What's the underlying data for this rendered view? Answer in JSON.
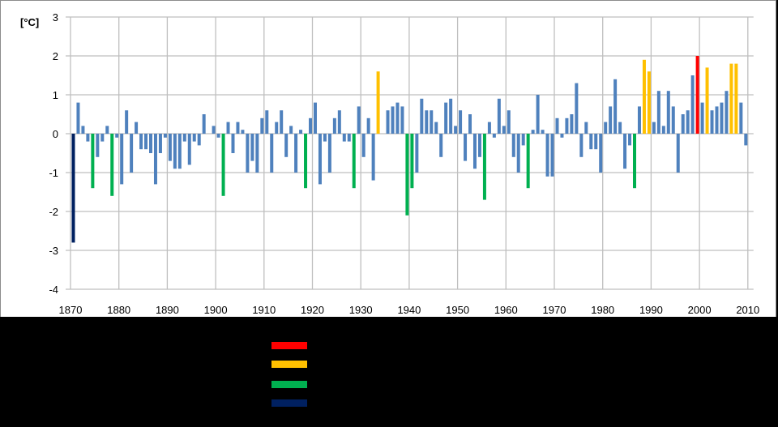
{
  "chart_data": {
    "type": "bar",
    "title": "",
    "xlabel": "",
    "ylabel": "[°C]",
    "ylim": [
      -4,
      3
    ],
    "xlim": [
      1870,
      2010
    ],
    "grid": true,
    "y_ticks": [
      "3",
      "2",
      "1",
      "0",
      "-1",
      "-2",
      "-3",
      "-4"
    ],
    "x_ticks": [
      "1870",
      "1880",
      "1890",
      "1900",
      "1910",
      "1920",
      "1930",
      "1940",
      "1950",
      "1960",
      "1970",
      "1980",
      "1990",
      "2000",
      "2010"
    ],
    "colors": {
      "normal": "#4f81bd",
      "warmest": "#ff0000",
      "very_warm": "#ffc000",
      "very_cold": "#00b050",
      "coldest": "#002060"
    },
    "legend": [
      {
        "color": "#ff0000",
        "label": ""
      },
      {
        "color": "#ffc000",
        "label": ""
      },
      {
        "color": "#00b050",
        "label": ""
      },
      {
        "color": "#002060",
        "label": ""
      }
    ],
    "x": [
      1871,
      1872,
      1873,
      1874,
      1875,
      1876,
      1877,
      1878,
      1879,
      1880,
      1881,
      1882,
      1883,
      1884,
      1885,
      1886,
      1887,
      1888,
      1889,
      1890,
      1891,
      1892,
      1893,
      1894,
      1895,
      1896,
      1897,
      1898,
      1899,
      1900,
      1901,
      1902,
      1903,
      1904,
      1905,
      1906,
      1907,
      1908,
      1909,
      1910,
      1911,
      1912,
      1913,
      1914,
      1915,
      1916,
      1917,
      1918,
      1919,
      1920,
      1921,
      1922,
      1923,
      1924,
      1925,
      1926,
      1927,
      1928,
      1929,
      1930,
      1931,
      1932,
      1933,
      1934,
      1935,
      1936,
      1937,
      1938,
      1939,
      1940,
      1941,
      1942,
      1943,
      1944,
      1945,
      1946,
      1947,
      1948,
      1949,
      1950,
      1951,
      1952,
      1953,
      1954,
      1955,
      1956,
      1957,
      1958,
      1959,
      1960,
      1961,
      1962,
      1963,
      1964,
      1965,
      1966,
      1967,
      1968,
      1969,
      1970,
      1971,
      1972,
      1973,
      1974,
      1975,
      1976,
      1977,
      1978,
      1979,
      1980,
      1981,
      1982,
      1983,
      1984,
      1985,
      1986,
      1987,
      1988,
      1989,
      1990,
      1991,
      1992,
      1993,
      1994,
      1995,
      1996,
      1997,
      1998,
      1999,
      2000,
      2001,
      2002,
      2003,
      2004,
      2005,
      2006,
      2007,
      2008,
      2009,
      2010
    ],
    "values": [
      -2.8,
      0.8,
      0.2,
      -0.2,
      -1.4,
      -0.6,
      -0.2,
      0.2,
      -1.6,
      -0.1,
      -1.3,
      0.6,
      -1.0,
      0.3,
      -0.4,
      -0.4,
      -0.5,
      -1.3,
      -0.5,
      -0.1,
      -0.7,
      -0.9,
      -0.9,
      -0.2,
      -0.8,
      -0.2,
      -0.3,
      0.5,
      0.0,
      0.2,
      -0.1,
      -1.6,
      0.3,
      -0.5,
      0.3,
      0.1,
      -1.0,
      -0.7,
      -1.0,
      0.4,
      0.6,
      -1.0,
      0.3,
      0.6,
      -0.6,
      0.2,
      -1.0,
      0.1,
      -1.4,
      0.4,
      0.8,
      -1.3,
      -0.2,
      -1.0,
      0.4,
      0.6,
      -0.2,
      -0.2,
      -1.4,
      0.7,
      -0.6,
      0.4,
      -1.2,
      1.6,
      0.0,
      0.6,
      0.7,
      0.8,
      0.7,
      -2.1,
      -1.4,
      -1.0,
      0.9,
      0.6,
      0.6,
      0.3,
      -0.6,
      0.8,
      0.9,
      0.2,
      0.6,
      -0.7,
      0.5,
      -0.9,
      -0.6,
      -1.7,
      0.3,
      -0.1,
      0.9,
      0.2,
      0.6,
      -0.6,
      -1.0,
      -0.3,
      -1.4,
      0.1,
      1.0,
      0.1,
      -1.1,
      -1.1,
      0.4,
      -0.1,
      0.4,
      0.5,
      1.3,
      -0.6,
      0.3,
      -0.4,
      -0.4,
      -1.0,
      0.3,
      0.7,
      1.4,
      0.3,
      -0.9,
      -0.3,
      -1.4,
      0.7,
      1.9,
      1.6,
      0.3,
      1.1,
      0.2,
      1.1,
      0.7,
      -1.0,
      0.5,
      0.6,
      1.5,
      2.0,
      0.8,
      1.7,
      0.6,
      0.7,
      0.8,
      1.1,
      1.8,
      1.8,
      0.8,
      -0.3
    ],
    "highlight": {
      "warmest": [
        2000
      ],
      "very_warm": [
        1934,
        1989,
        1990,
        2002,
        2007,
        2008
      ],
      "very_cold": [
        1875,
        1879,
        1902,
        1919,
        1929,
        1940,
        1941,
        1956,
        1965,
        1987
      ],
      "coldest": [
        1871
      ]
    }
  }
}
